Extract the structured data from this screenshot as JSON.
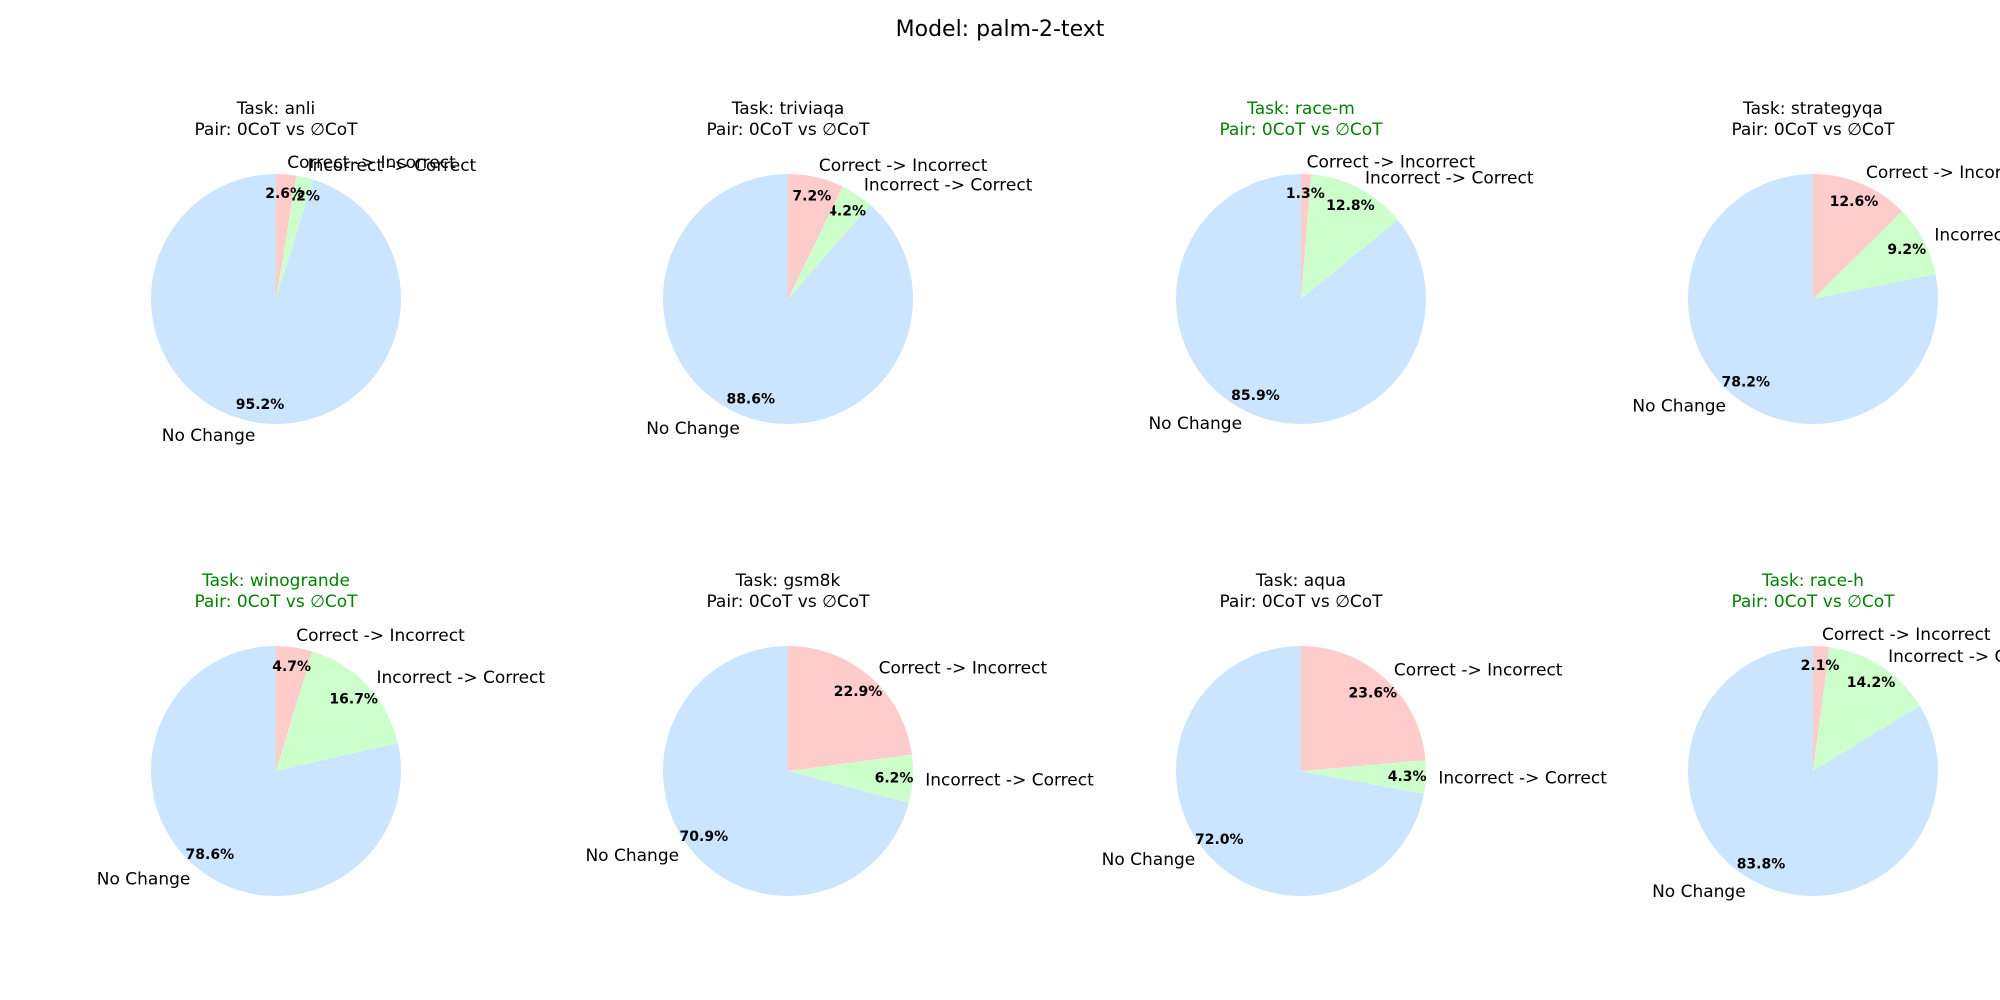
{
  "figure": {
    "title": "Model: palm-2-text"
  },
  "colors": {
    "no_change": "#cce5ff",
    "incorrect_to_correct": "#ccffcc",
    "correct_to_incorrect": "#ffcccc",
    "title_default": "#000000",
    "title_highlight": "#008000"
  },
  "chart_data": [
    {
      "type": "pie",
      "task_title": "Task: anli",
      "pair_title": "Pair: 0CoT vs ∅CoT",
      "highlight": false,
      "labels": [
        "No Change",
        "Incorrect -> Correct",
        "Correct -> Incorrect"
      ],
      "values": [
        95.2,
        2.2,
        2.6
      ],
      "pct_labels": [
        "95.2%",
        "2.2%",
        "2.6%"
      ]
    },
    {
      "type": "pie",
      "task_title": "Task: triviaqa",
      "pair_title": "Pair: 0CoT vs ∅CoT",
      "highlight": false,
      "labels": [
        "No Change",
        "Incorrect -> Correct",
        "Correct -> Incorrect"
      ],
      "values": [
        88.6,
        4.2,
        7.2
      ],
      "pct_labels": [
        "88.6%",
        "4.2%",
        "7.2%"
      ]
    },
    {
      "type": "pie",
      "task_title": "Task: race-m",
      "pair_title": "Pair: 0CoT vs ∅CoT",
      "highlight": true,
      "labels": [
        "No Change",
        "Incorrect -> Correct",
        "Correct -> Incorrect"
      ],
      "values": [
        85.9,
        12.8,
        1.3
      ],
      "pct_labels": [
        "85.9%",
        "12.8%",
        "1.3%"
      ]
    },
    {
      "type": "pie",
      "task_title": "Task: strategyqa",
      "pair_title": "Pair: 0CoT vs ∅CoT",
      "highlight": false,
      "labels": [
        "No Change",
        "Incorrect -> Correct",
        "Correct -> Incorrect"
      ],
      "values": [
        78.2,
        9.2,
        12.6
      ],
      "pct_labels": [
        "78.2%",
        "9.2%",
        "12.6%"
      ]
    },
    {
      "type": "pie",
      "task_title": "Task: winogrande",
      "pair_title": "Pair: 0CoT vs ∅CoT",
      "highlight": true,
      "labels": [
        "No Change",
        "Incorrect -> Correct",
        "Correct -> Incorrect"
      ],
      "values": [
        78.6,
        16.7,
        4.7
      ],
      "pct_labels": [
        "78.6%",
        "16.7%",
        "4.7%"
      ]
    },
    {
      "type": "pie",
      "task_title": "Task: gsm8k",
      "pair_title": "Pair: 0CoT vs ∅CoT",
      "highlight": false,
      "labels": [
        "No Change",
        "Incorrect -> Correct",
        "Correct -> Incorrect"
      ],
      "values": [
        70.9,
        6.2,
        22.9
      ],
      "pct_labels": [
        "70.9%",
        "6.2%",
        "22.9%"
      ]
    },
    {
      "type": "pie",
      "task_title": "Task: aqua",
      "pair_title": "Pair: 0CoT vs ∅CoT",
      "highlight": false,
      "labels": [
        "No Change",
        "Incorrect -> Correct",
        "Correct -> Incorrect"
      ],
      "values": [
        72.0,
        4.3,
        23.6
      ],
      "pct_labels": [
        "72.0%",
        "4.3%",
        "23.6%"
      ]
    },
    {
      "type": "pie",
      "task_title": "Task: race-h",
      "pair_title": "Pair: 0CoT vs ∅CoT",
      "highlight": true,
      "labels": [
        "No Change",
        "Incorrect -> Correct",
        "Correct -> Incorrect"
      ],
      "values": [
        83.8,
        14.2,
        2.1
      ],
      "pct_labels": [
        "83.8%",
        "14.2%",
        "2.1%"
      ]
    }
  ]
}
